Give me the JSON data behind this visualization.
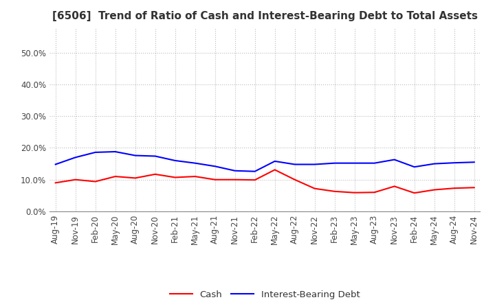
{
  "title": "[6506]  Trend of Ratio of Cash and Interest-Bearing Debt to Total Assets",
  "x_labels": [
    "Aug-19",
    "Nov-19",
    "Feb-20",
    "May-20",
    "Aug-20",
    "Nov-20",
    "Feb-21",
    "May-21",
    "Aug-21",
    "Nov-21",
    "Feb-22",
    "May-22",
    "Aug-22",
    "Nov-22",
    "Feb-23",
    "May-23",
    "Aug-23",
    "Nov-23",
    "Feb-24",
    "May-24",
    "Aug-24",
    "Nov-24"
  ],
  "cash": [
    0.09,
    0.1,
    0.094,
    0.11,
    0.105,
    0.117,
    0.107,
    0.11,
    0.1,
    0.1,
    0.099,
    0.131,
    0.1,
    0.072,
    0.063,
    0.059,
    0.06,
    0.079,
    0.058,
    0.068,
    0.073,
    0.075
  ],
  "interest_bearing_debt": [
    0.148,
    0.17,
    0.186,
    0.188,
    0.176,
    0.174,
    0.16,
    0.152,
    0.142,
    0.128,
    0.126,
    0.158,
    0.148,
    0.148,
    0.152,
    0.152,
    0.152,
    0.163,
    0.14,
    0.15,
    0.153,
    0.155
  ],
  "cash_color": "#ff0000",
  "debt_color": "#0000ff",
  "bg_color": "#ffffff",
  "plot_bg_color": "#ffffff",
  "ylim": [
    0.0,
    0.58
  ],
  "yticks": [
    0.0,
    0.1,
    0.2,
    0.3,
    0.4,
    0.5
  ],
  "legend_cash": "Cash",
  "legend_debt": "Interest-Bearing Debt",
  "title_fontsize": 11,
  "tick_fontsize": 8.5,
  "legend_fontsize": 9.5,
  "title_color": "#333333"
}
